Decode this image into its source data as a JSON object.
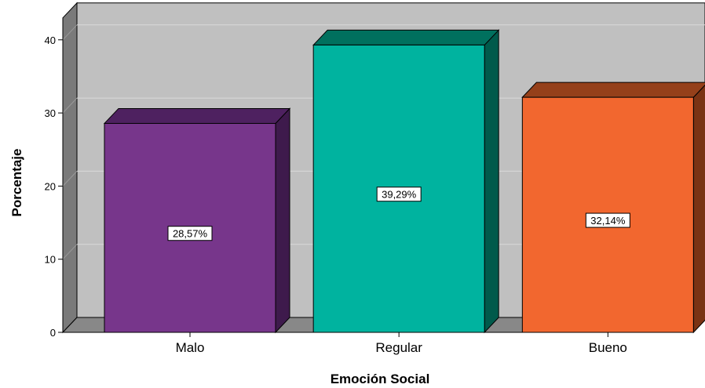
{
  "chart_data": {
    "type": "bar",
    "style": "3d",
    "xlabel": "Emoción Social",
    "ylabel": "Porcentaje",
    "categories": [
      "Malo",
      "Regular",
      "Bueno"
    ],
    "values": [
      28.57,
      39.29,
      32.14
    ],
    "data_labels": [
      "28,57%",
      "39,29%",
      "32,14%"
    ],
    "ylim": [
      0,
      43
    ],
    "yticks": [
      0,
      10,
      20,
      30,
      40
    ],
    "grid": true,
    "colors": {
      "front": [
        "#77368b",
        "#00b39f",
        "#f2672f"
      ],
      "top": [
        "#4e2160",
        "#00705e",
        "#95401a"
      ],
      "side": [
        "#3e1a4c",
        "#005a4b",
        "#7a3314"
      ],
      "plot_back": "#c0c0c0",
      "plot_wall": "#7a7a7a",
      "plot_floor": "#888888"
    }
  }
}
